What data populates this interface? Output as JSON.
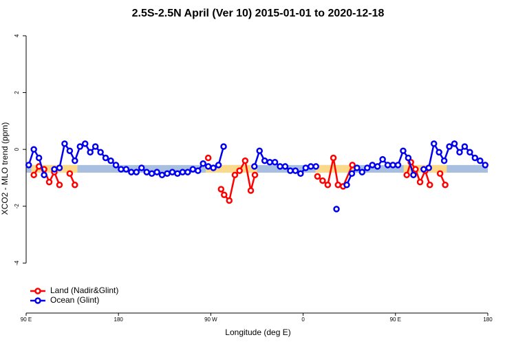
{
  "chart_data": {
    "type": "line",
    "title": "2.5S-2.5N April (Ver 10)   2015-01-01 to 2020-12-18",
    "x_label": "Longitude (deg E)",
    "y_label": "XCO2 - MLO trend (ppm)",
    "xlim": [
      90,
      540
    ],
    "xticks": [
      {
        "value": 90,
        "label": "90 E"
      },
      180,
      {
        "value": 270,
        "label": "90 W"
      },
      {
        "value": 360,
        "label": "0"
      },
      {
        "value": 450,
        "label": "90 E"
      },
      {
        "value": 540,
        "label": "180"
      }
    ],
    "ylim": [
      -5.76,
      4.29
    ],
    "yticks": [
      -4,
      -2,
      0,
      2,
      4
    ],
    "legend": "bottom-left",
    "bands": [
      {
        "color": "#a9bfdf",
        "x": [
          90,
          540
        ],
        "y": [
          -0.82,
          -0.55
        ]
      },
      {
        "color": "#fbd98a",
        "x": [
          95,
          140
        ],
        "y": [
          -0.82,
          -0.55
        ]
      },
      {
        "color": "#fbd98a",
        "x": [
          265,
          315
        ],
        "y": [
          -0.82,
          -0.55
        ]
      },
      {
        "color": "#fbd98a",
        "x": [
          372,
          410
        ],
        "y": [
          -0.82,
          -0.55
        ]
      },
      {
        "color": "#fbd98a",
        "x": [
          458,
          500
        ],
        "y": [
          -0.82,
          -0.55
        ]
      }
    ],
    "series": [
      {
        "name": "Land (Nadir&Glint)",
        "color": "#ff0000",
        "x": [
          97.5,
          102.5,
          107.5,
          112.5,
          117.5,
          122.5,
          127.5,
          132.5,
          137.5,
          200,
          267.5,
          275,
          280,
          283,
          288,
          293.5,
          298,
          303.5,
          309,
          313,
          340,
          374,
          379,
          384,
          389.5,
          394,
          399,
          408,
          430,
          461,
          465,
          469.5,
          474,
          479,
          483.5,
          488,
          493.5,
          498.5
        ],
        "values": [
          -0.9,
          -0.6,
          -0.7,
          -1.15,
          -0.8,
          -1.25,
          null,
          -0.85,
          -1.25,
          null,
          -0.3,
          null,
          -1.4,
          -1.6,
          -1.8,
          -0.9,
          -0.75,
          -0.4,
          -1.45,
          -0.9,
          null,
          -0.95,
          -1.1,
          -1.25,
          -0.3,
          -1.25,
          -1.3,
          -0.55,
          null,
          -0.9,
          -0.45,
          -0.7,
          -1.15,
          -0.75,
          -1.25,
          null,
          -0.85,
          -1.25
        ]
      },
      {
        "name": "Ocean (Glint)",
        "color": "#0000ee",
        "x": [
          92.5,
          97.5,
          102.5,
          107.5,
          112.5,
          117.5,
          122.5,
          127.5,
          132.5,
          137.5,
          142.5,
          147.5,
          152.5,
          157.5,
          162.5,
          167.5,
          172.5,
          177.5,
          182.5,
          187.5,
          192.5,
          197.5,
          202.5,
          207.5,
          212.5,
          217.5,
          222.5,
          227.5,
          232.5,
          237.5,
          242.5,
          247.5,
          252.5,
          257.5,
          262.5,
          267.5,
          272.5,
          277.5,
          282.5,
          287.5,
          292.5,
          297.5,
          302.5,
          307.5,
          312.5,
          317.5,
          322.5,
          327.5,
          332.5,
          337.5,
          342.5,
          347.5,
          352.5,
          357.5,
          362.5,
          367.5,
          372.5,
          377.5,
          382.5,
          387.5,
          392.5,
          397.5,
          402.5,
          407.5,
          412.5,
          417.5,
          422.5,
          427.5,
          432.5,
          437.5,
          442.5,
          447.5,
          452.5,
          457.5,
          462.5,
          467.5,
          472.5,
          477.5,
          482.5,
          487.5,
          492.5,
          497.5,
          502.5,
          507.5,
          512.5,
          517.5,
          522.5,
          527.5,
          532.5,
          537.5
        ],
        "values": [
          -0.55,
          0,
          -0.3,
          -0.9,
          null,
          -0.7,
          -0.65,
          0.2,
          -0.05,
          -0.4,
          0.1,
          0.2,
          -0.1,
          0.1,
          -0.1,
          -0.3,
          -0.4,
          -0.55,
          -0.7,
          -0.7,
          -0.8,
          -0.8,
          -0.65,
          -0.8,
          -0.85,
          -0.8,
          -0.9,
          -0.85,
          -0.8,
          -0.85,
          -0.8,
          -0.8,
          -0.7,
          -0.75,
          -0.5,
          -0.6,
          -0.65,
          -0.55,
          0.1,
          null,
          null,
          null,
          null,
          null,
          -0.6,
          -0.05,
          -0.4,
          -0.45,
          -0.45,
          -0.6,
          -0.6,
          -0.75,
          -0.75,
          -0.85,
          -0.65,
          -0.6,
          -0.6,
          null,
          null,
          null,
          -2.1,
          null,
          -1.25,
          -0.85,
          -0.65,
          -0.8,
          -0.65,
          -0.55,
          -0.6,
          -0.35,
          -0.55,
          -0.55,
          -0.55,
          -0.05,
          -0.3,
          -0.9,
          null,
          -0.7,
          -0.65,
          0.2,
          -0.1,
          -0.4,
          0.1,
          0.2,
          -0.1,
          0.1,
          -0.1,
          -0.3,
          -0.4,
          -0.55
        ]
      }
    ]
  }
}
